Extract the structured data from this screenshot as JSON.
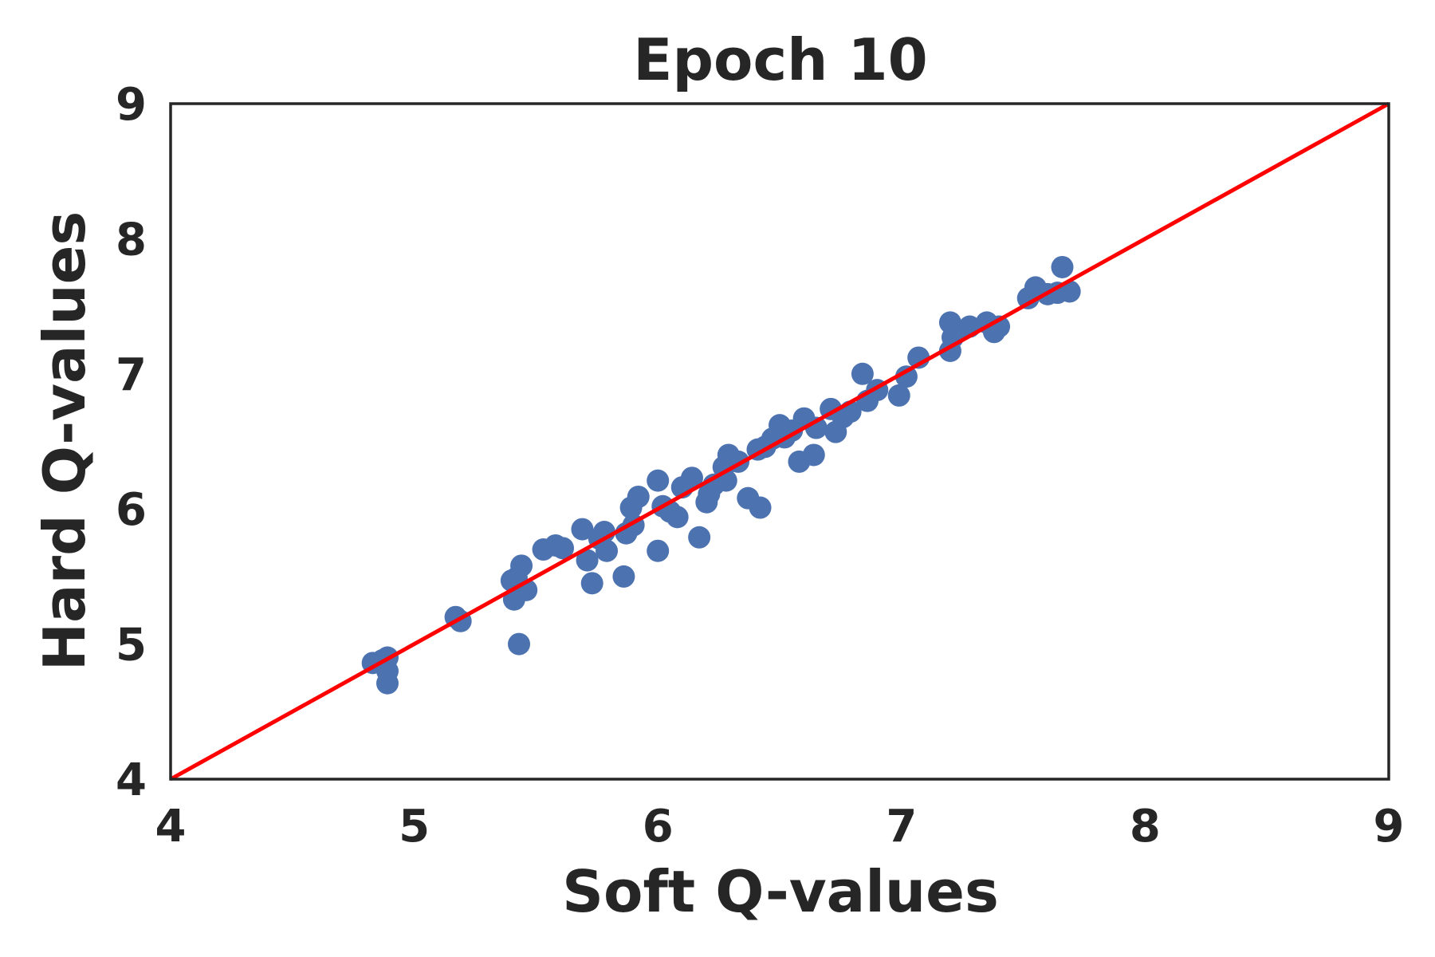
{
  "chart_data": {
    "type": "scatter",
    "title": "Epoch 10",
    "xlabel": "Soft Q-values",
    "ylabel": "Hard Q-values",
    "xlim": [
      4,
      9
    ],
    "ylim": [
      4,
      9
    ],
    "xticks": [
      "4",
      "5",
      "6",
      "7",
      "8",
      "9"
    ],
    "yticks": [
      "4",
      "5",
      "6",
      "7",
      "8",
      "9"
    ],
    "grid": false,
    "legend": "none",
    "reference_line": {
      "from": [
        4,
        4
      ],
      "to": [
        9,
        9
      ],
      "color": "#ff0000"
    },
    "series": [
      {
        "color": "#4c72b0",
        "points": [
          [
            4.83,
            4.86
          ],
          [
            4.87,
            4.88
          ],
          [
            4.89,
            4.9
          ],
          [
            4.89,
            4.8
          ],
          [
            4.89,
            4.71
          ],
          [
            5.17,
            5.2
          ],
          [
            5.19,
            5.17
          ],
          [
            5.4,
            5.47
          ],
          [
            5.41,
            5.33
          ],
          [
            5.42,
            5.49
          ],
          [
            5.44,
            5.58
          ],
          [
            5.46,
            5.4
          ],
          [
            5.43,
            5.0
          ],
          [
            5.53,
            5.7
          ],
          [
            5.58,
            5.73
          ],
          [
            5.61,
            5.71
          ],
          [
            5.69,
            5.85
          ],
          [
            5.71,
            5.62
          ],
          [
            5.73,
            5.45
          ],
          [
            5.76,
            5.78
          ],
          [
            5.78,
            5.83
          ],
          [
            5.79,
            5.69
          ],
          [
            5.86,
            5.5
          ],
          [
            5.87,
            5.82
          ],
          [
            5.9,
            5.88
          ],
          [
            5.89,
            6.01
          ],
          [
            5.92,
            6.09
          ],
          [
            6.0,
            6.21
          ],
          [
            6.0,
            5.69
          ],
          [
            6.02,
            6.02
          ],
          [
            6.05,
            5.98
          ],
          [
            6.08,
            5.94
          ],
          [
            6.1,
            6.16
          ],
          [
            6.14,
            6.23
          ],
          [
            6.17,
            5.79
          ],
          [
            6.2,
            6.05
          ],
          [
            6.21,
            6.11
          ],
          [
            6.23,
            6.18
          ],
          [
            6.27,
            6.31
          ],
          [
            6.29,
            6.4
          ],
          [
            6.28,
            6.21
          ],
          [
            6.33,
            6.35
          ],
          [
            6.37,
            6.08
          ],
          [
            6.42,
            6.01
          ],
          [
            6.41,
            6.44
          ],
          [
            6.44,
            6.46
          ],
          [
            6.47,
            6.52
          ],
          [
            6.5,
            6.62
          ],
          [
            6.52,
            6.53
          ],
          [
            6.55,
            6.58
          ],
          [
            6.58,
            6.35
          ],
          [
            6.6,
            6.67
          ],
          [
            6.64,
            6.4
          ],
          [
            6.65,
            6.6
          ],
          [
            6.71,
            6.74
          ],
          [
            6.73,
            6.57
          ],
          [
            6.76,
            6.68
          ],
          [
            6.79,
            6.72
          ],
          [
            6.84,
            7.0
          ],
          [
            6.86,
            6.8
          ],
          [
            6.9,
            6.88
          ],
          [
            6.99,
            6.84
          ],
          [
            7.02,
            6.98
          ],
          [
            7.07,
            7.12
          ],
          [
            7.2,
            7.17
          ],
          [
            7.21,
            7.27
          ],
          [
            7.2,
            7.38
          ],
          [
            7.23,
            7.31
          ],
          [
            7.28,
            7.35
          ],
          [
            7.35,
            7.38
          ],
          [
            7.38,
            7.31
          ],
          [
            7.4,
            7.35
          ],
          [
            7.52,
            7.56
          ],
          [
            7.55,
            7.64
          ],
          [
            7.6,
            7.59
          ],
          [
            7.64,
            7.6
          ],
          [
            7.66,
            7.79
          ],
          [
            7.69,
            7.61
          ]
        ]
      }
    ]
  }
}
